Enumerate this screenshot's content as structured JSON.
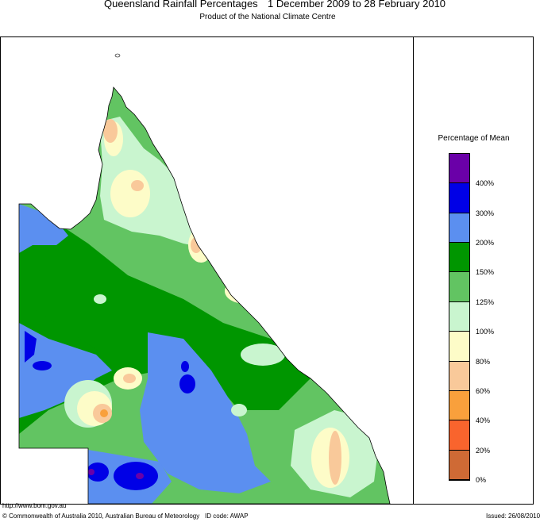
{
  "header": {
    "title": "Queensland Rainfall Percentages",
    "period": "1 December 2009 to 28 February 2010",
    "subtitle": "Product of the National Climate Centre"
  },
  "legend": {
    "title": "Percentage of Mean",
    "bands": [
      {
        "color": "#6a00a8"
      },
      {
        "color": "#0000e6"
      },
      {
        "color": "#5b8ff0"
      },
      {
        "color": "#009600"
      },
      {
        "color": "#62c462"
      },
      {
        "color": "#c9f5cf"
      },
      {
        "color": "#fdfcc8"
      },
      {
        "color": "#f9c99a"
      },
      {
        "color": "#f9a03c"
      },
      {
        "color": "#f9642d"
      },
      {
        "color": "#cf6a35"
      }
    ],
    "labels": [
      "400%",
      "300%",
      "200%",
      "150%",
      "125%",
      "100%",
      "80%",
      "60%",
      "40%",
      "20%",
      "0%"
    ]
  },
  "footer": {
    "url": "http://www.bom.gov.au",
    "copyright": "© Commonwealth of Australia 2010, Australian Bureau of Meteorology",
    "id_code": "ID code: AWAP",
    "issued": "Issued: 26/08/2010"
  }
}
